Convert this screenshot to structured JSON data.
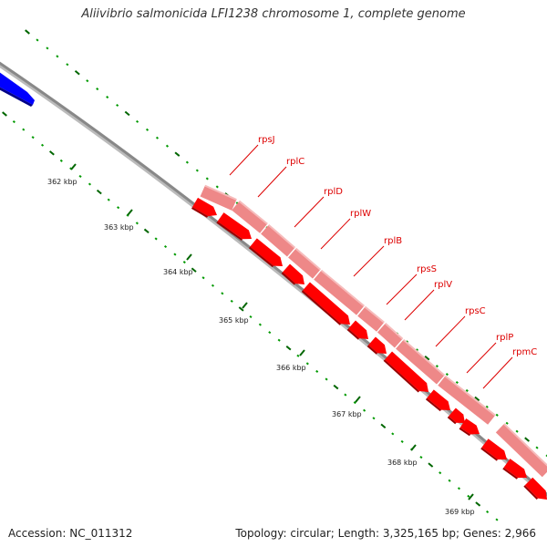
{
  "title": "Aliivibrio salmonicida LFI1238 chromosome 1, complete genome",
  "footer": {
    "accession": "Accession: NC_011312",
    "summary": "Topology: circular; Length: 3,325,165 bp; Genes: 2,966"
  },
  "ticks": [
    "362 kbp",
    "363 kbp",
    "364 kbp",
    "365 kbp",
    "366 kbp",
    "367 kbp",
    "368 kbp",
    "369 kbp"
  ],
  "genes": [
    "rpsJ",
    "rplC",
    "rplD",
    "rplW",
    "rplB",
    "rpsS",
    "rplV",
    "rpsC",
    "rplP",
    "rpmC"
  ],
  "colors": {
    "backbone": "#888888",
    "gene_cds": "#ff0000",
    "gene_light": "#ee8888",
    "other_feature": "#0000ff",
    "tick_major": "#006600",
    "tick_minor": "#009900",
    "label": "#dd0000"
  }
}
